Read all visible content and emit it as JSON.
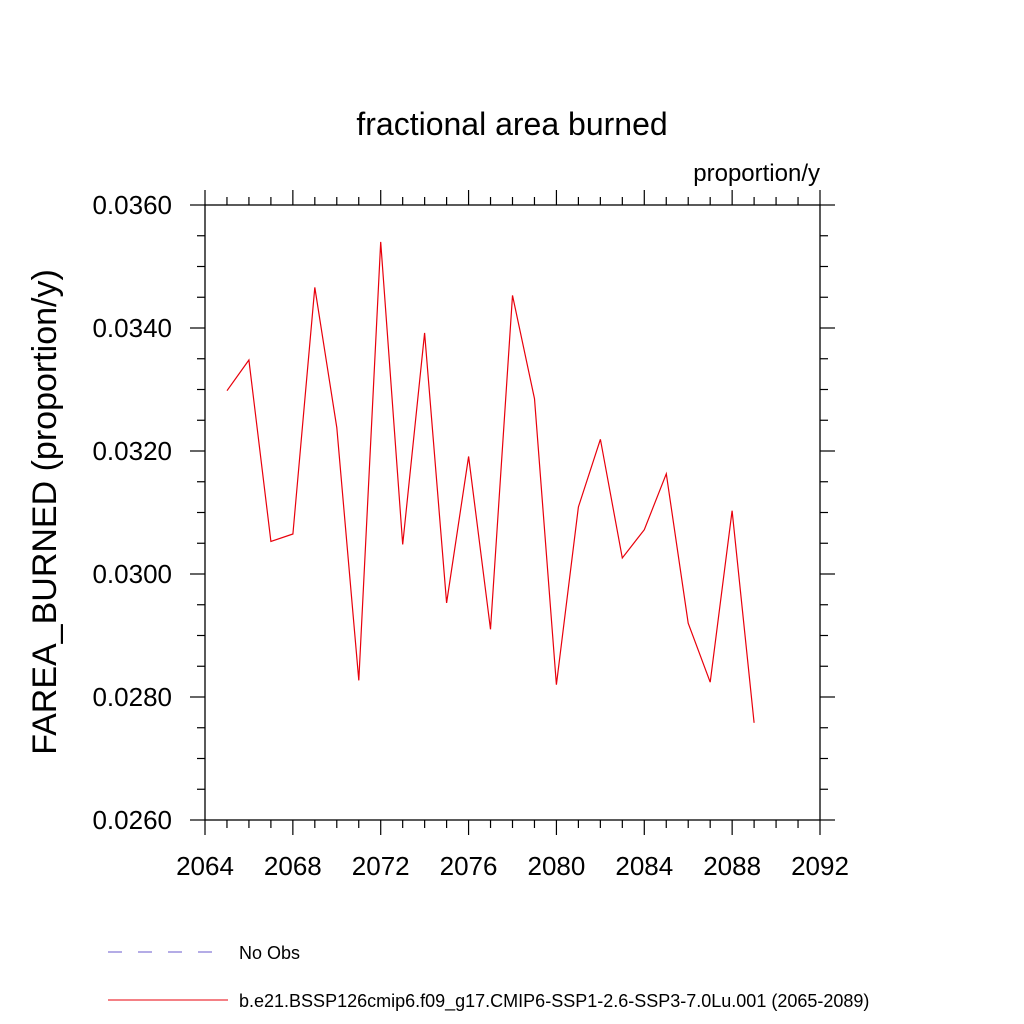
{
  "chart_data": {
    "type": "line",
    "title": "fractional area burned",
    "units_label": "proportion/y",
    "ylabel": "FAREA_BURNED  (proportion/y)",
    "xlabel": "",
    "xlim": [
      2064,
      2092
    ],
    "ylim": [
      0.026,
      0.036
    ],
    "x_ticks": [
      "2064",
      "2068",
      "2072",
      "2076",
      "2080",
      "2084",
      "2088",
      "2092"
    ],
    "y_ticks": [
      "0.0260",
      "0.0280",
      "0.0300",
      "0.0320",
      "0.0340",
      "0.0360"
    ],
    "x": [
      2065,
      2066,
      2067,
      2068,
      2069,
      2070,
      2071,
      2072,
      2073,
      2074,
      2075,
      2076,
      2077,
      2078,
      2079,
      2080,
      2081,
      2082,
      2083,
      2084,
      2085,
      2086,
      2087,
      2088,
      2089
    ],
    "series": [
      {
        "name": "b.e21.BSSP126cmip6.f09_g17.CMIP6-SSP1-2.6-SSP3-7.0Lu.001 (2065-2089)",
        "color": "#e8000b",
        "values": [
          0.03298,
          0.03348,
          0.03053,
          0.03065,
          0.03466,
          0.03238,
          0.02827,
          0.0354,
          0.03048,
          0.03392,
          0.02953,
          0.03191,
          0.0291,
          0.03453,
          0.03285,
          0.0282,
          0.03109,
          0.03219,
          0.03026,
          0.03072,
          0.03163,
          0.0292,
          0.02824,
          0.03103,
          0.02758
        ]
      }
    ],
    "legend": [
      {
        "label": "No Obs",
        "color": "#6a5acd",
        "dash": "dashed"
      },
      {
        "label": "b.e21.BSSP126cmip6.f09_g17.CMIP6-SSP1-2.6-SSP3-7.0Lu.001 (2065-2089)",
        "color": "#e8000b",
        "dash": "solid"
      }
    ],
    "legend_position": "bottom-left",
    "grid": false
  }
}
